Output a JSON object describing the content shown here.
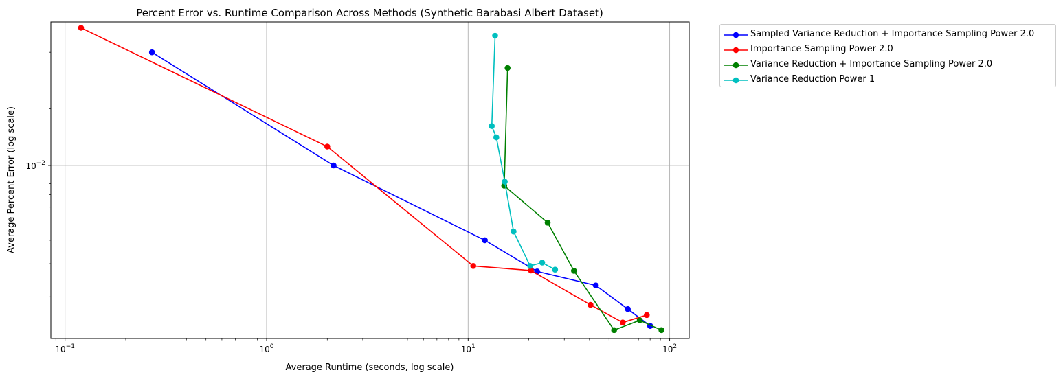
{
  "chart_data": {
    "type": "line",
    "title": "Percent Error vs. Runtime Comparison Across Methods (Synthetic Barabasi Albert Dataset)",
    "xlabel": "Average Runtime (seconds, log scale)",
    "ylabel": "Average Percent Error (log scale)",
    "xscale": "log",
    "yscale": "log",
    "xlim": [
      0.085,
      125
    ],
    "ylim": [
      0.0012,
      0.058
    ],
    "x_ticks": [
      {
        "value": 0.1,
        "base": "10",
        "exp": "−1"
      },
      {
        "value": 1,
        "base": "10",
        "exp": "0"
      },
      {
        "value": 10,
        "base": "10",
        "exp": "1"
      },
      {
        "value": 100,
        "base": "10",
        "exp": "2"
      }
    ],
    "y_ticks": [
      {
        "value": 0.01,
        "base": "10",
        "exp": "−2"
      }
    ],
    "grid": true,
    "legend_position": "outside-upper-right",
    "series": [
      {
        "name": "Sampled Variance Reduction + Importance Sampling Power 2.0",
        "color": "#0000ff",
        "x": [
          0.27,
          2.15,
          12.1,
          22,
          43,
          62,
          80
        ],
        "y": [
          0.04,
          0.01,
          0.004,
          0.00273,
          0.0023,
          0.00172,
          0.0014
        ]
      },
      {
        "name": "Importance Sampling Power 2.0",
        "color": "#ff0000",
        "x": [
          0.12,
          2.0,
          10.6,
          20.5,
          40.5,
          58.5,
          77
        ],
        "y": [
          0.054,
          0.0126,
          0.00292,
          0.00276,
          0.00181,
          0.00146,
          0.0016
        ]
      },
      {
        "name": "Variance Reduction + Importance Sampling Power 2.0",
        "color": "#008000",
        "x": [
          15.7,
          15.1,
          24.8,
          33.5,
          53,
          71,
          91
        ],
        "y": [
          0.033,
          0.0078,
          0.00496,
          0.00275,
          0.00133,
          0.0015,
          0.00133
        ]
      },
      {
        "name": "Variance Reduction Power 1",
        "color": "#00bfbf",
        "x": [
          13.6,
          13.1,
          13.8,
          15.2,
          16.8,
          20.3,
          23.3,
          27.0
        ],
        "y": [
          0.049,
          0.0162,
          0.0141,
          0.0082,
          0.00445,
          0.00292,
          0.00304,
          0.00279
        ]
      }
    ]
  }
}
